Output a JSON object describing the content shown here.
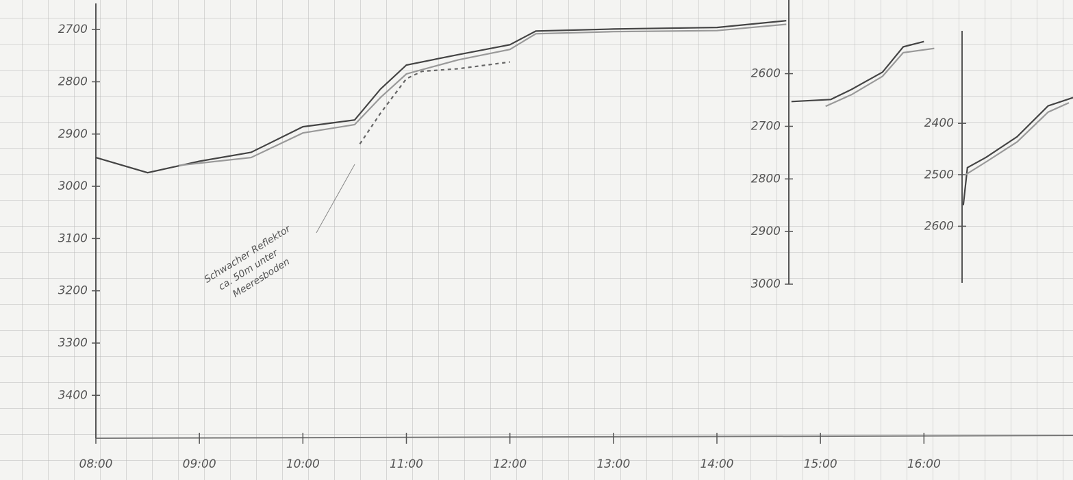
{
  "chart_data": [
    {
      "type": "line",
      "y_reversed": true,
      "xlim": [
        8,
        17.44
      ],
      "ylim": [
        2650,
        3490
      ],
      "yticks": [
        2700,
        2800,
        2900,
        3000,
        3100,
        3200,
        3300,
        3400
      ],
      "xticks": [
        {
          "value": 8,
          "label": "08:00"
        },
        {
          "value": 9,
          "label": "09:00"
        },
        {
          "value": 10,
          "label": "10:00"
        },
        {
          "value": 11,
          "label": "11:00"
        },
        {
          "value": 12,
          "label": "12:00"
        },
        {
          "value": 13,
          "label": "13:00"
        },
        {
          "value": 14,
          "label": "14:00"
        },
        {
          "value": 15,
          "label": "15:00"
        },
        {
          "value": 16,
          "label": "16:00"
        }
      ],
      "annotation": [
        "Schwacher Reflektor",
        "ca. 50m unter",
        "Meeresboden"
      ],
      "series": [
        {
          "color": "#444444",
          "line_style": "solid",
          "x": [
            8,
            8.5,
            9,
            9.5,
            10,
            10.5,
            10.75,
            11,
            11.5,
            12,
            12.25,
            13,
            14,
            14.67
          ],
          "values": [
            2945,
            2974,
            2952,
            2935,
            2886,
            2873,
            2814,
            2768,
            2748,
            2729,
            2703,
            2699,
            2696,
            2683
          ]
        },
        {
          "color": "#999999",
          "line_style": "solid",
          "x": [
            8.8,
            9.5,
            10,
            10.5,
            10.75,
            11,
            11.5,
            12,
            12.25,
            13,
            14,
            14.67
          ],
          "values": [
            2960,
            2945,
            2898,
            2882,
            2830,
            2785,
            2758,
            2738,
            2708,
            2704,
            2702,
            2690
          ]
        },
        {
          "color": "#666666",
          "line_style": "dashed",
          "x": [
            10.55,
            10.75,
            11,
            11.15,
            11.5,
            12
          ],
          "values": [
            2919,
            2860,
            2794,
            2780,
            2775,
            2762
          ]
        }
      ]
    },
    {
      "type": "line",
      "y_reversed": true,
      "xlim": [
        8,
        17.44
      ],
      "ylim": [
        2460,
        3000
      ],
      "yticks": [
        2600,
        2700,
        2800,
        2900,
        3000
      ],
      "series": [
        {
          "color": "#444444",
          "line_style": "solid",
          "x": [
            14.72,
            15.1,
            15.3,
            15.6,
            15.8,
            16.0
          ],
          "values": [
            2653,
            2649,
            2630,
            2597,
            2549,
            2539
          ]
        },
        {
          "color": "#999999",
          "line_style": "solid",
          "x": [
            15.05,
            15.3,
            15.6,
            15.8,
            16.1
          ],
          "values": [
            2662,
            2640,
            2605,
            2560,
            2552
          ]
        }
      ]
    },
    {
      "type": "line",
      "y_reversed": true,
      "xlim": [
        8,
        17.44
      ],
      "ylim": [
        2220,
        2710
      ],
      "yticks": [
        2400,
        2500,
        2600
      ],
      "series": [
        {
          "color": "#444444",
          "line_style": "solid",
          "x": [
            16.38,
            16.42,
            16.6,
            16.9,
            17.2,
            17.44
          ],
          "values": [
            2559,
            2486,
            2466,
            2426,
            2366,
            2350
          ]
        },
        {
          "color": "#999999",
          "line_style": "solid",
          "x": [
            16.4,
            16.6,
            16.9,
            17.2,
            17.4
          ],
          "values": [
            2500,
            2475,
            2436,
            2378,
            2360
          ]
        }
      ]
    }
  ]
}
